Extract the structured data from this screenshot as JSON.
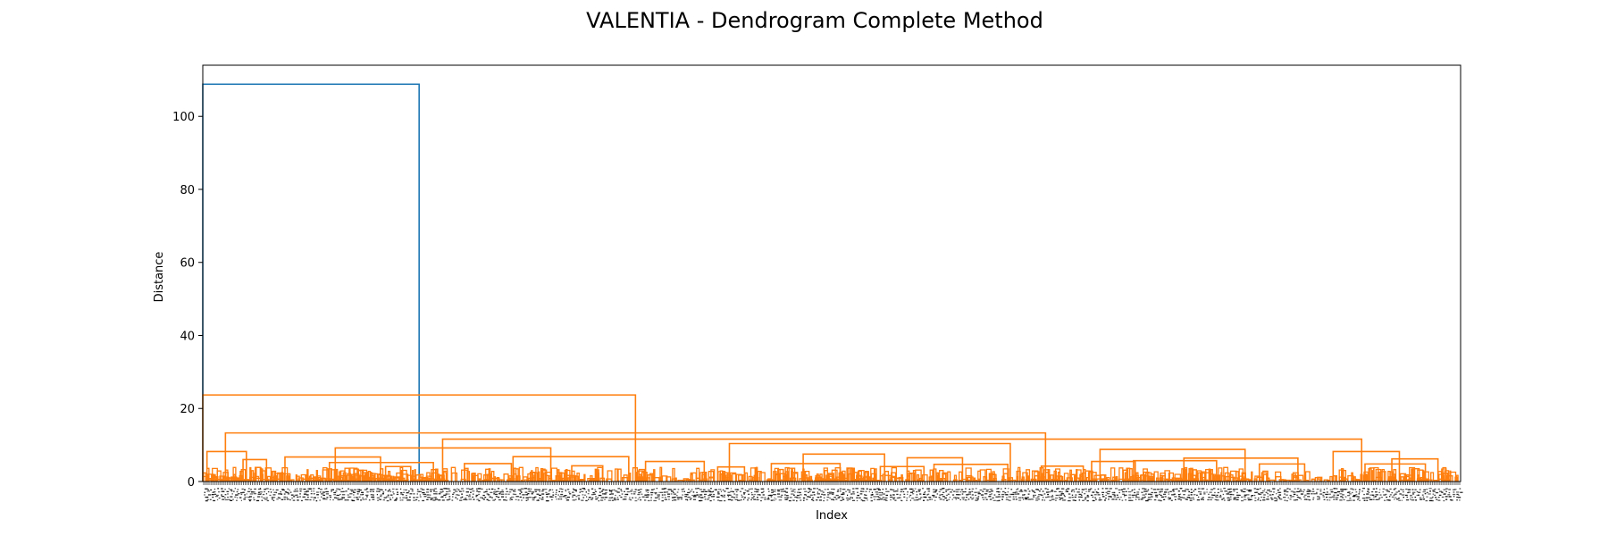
{
  "chart_data": {
    "type": "dendrogram",
    "title": "VALENTIA - Dendrogram Complete Method",
    "xlabel": "Index",
    "ylabel": "Distance",
    "ylim": [
      0,
      114
    ],
    "y_ticks": [
      0,
      20,
      40,
      60,
      80,
      100
    ],
    "leaf_count_approx": 1500,
    "leaf_range": [
      0,
      1500
    ],
    "grid": false,
    "legend": "none",
    "colors": {
      "root_link": "#1f77b4",
      "cluster_links": "#ff7f0e",
      "axes": "#000000"
    },
    "links": [
      {
        "left": 0,
        "right": 258,
        "height": 108.8,
        "color": "root"
      },
      {
        "left": 0,
        "right": 516,
        "height": 23.7,
        "color": "cluster"
      },
      {
        "left": 27,
        "right": 1005,
        "height": 13.3,
        "color": "cluster"
      },
      {
        "left": 286,
        "right": 1382,
        "height": 11.6,
        "color": "cluster"
      },
      {
        "left": 158,
        "right": 415,
        "height": 9.2,
        "color": "cluster"
      },
      {
        "left": 628,
        "right": 963,
        "height": 10.4,
        "color": "cluster"
      },
      {
        "left": 1070,
        "right": 1243,
        "height": 8.8,
        "color": "cluster"
      },
      {
        "left": 1348,
        "right": 1427,
        "height": 8.2,
        "color": "cluster"
      },
      {
        "left": 5,
        "right": 52,
        "height": 8.2,
        "color": "cluster"
      },
      {
        "left": 98,
        "right": 212,
        "height": 6.7,
        "color": "cluster"
      },
      {
        "left": 370,
        "right": 508,
        "height": 6.8,
        "color": "cluster"
      },
      {
        "left": 716,
        "right": 813,
        "height": 7.5,
        "color": "cluster"
      },
      {
        "left": 840,
        "right": 906,
        "height": 6.5,
        "color": "cluster"
      },
      {
        "left": 1170,
        "right": 1306,
        "height": 6.4,
        "color": "cluster"
      },
      {
        "left": 1418,
        "right": 1473,
        "height": 6.2,
        "color": "cluster"
      },
      {
        "left": 48,
        "right": 76,
        "height": 6.0,
        "color": "cluster"
      },
      {
        "left": 1060,
        "right": 1112,
        "height": 5.5,
        "color": "cluster"
      },
      {
        "left": 1110,
        "right": 1209,
        "height": 5.7,
        "color": "cluster"
      },
      {
        "left": 528,
        "right": 598,
        "height": 5.5,
        "color": "cluster"
      },
      {
        "left": 151,
        "right": 275,
        "height": 5.2,
        "color": "cluster"
      },
      {
        "left": 312,
        "right": 368,
        "height": 4.9,
        "color": "cluster"
      },
      {
        "left": 678,
        "right": 760,
        "height": 4.9,
        "color": "cluster"
      },
      {
        "left": 872,
        "right": 960,
        "height": 4.7,
        "color": "cluster"
      },
      {
        "left": 1260,
        "right": 1314,
        "height": 4.8,
        "color": "cluster"
      },
      {
        "left": 1386,
        "right": 1458,
        "height": 4.8,
        "color": "cluster"
      },
      {
        "left": 440,
        "right": 477,
        "height": 4.3,
        "color": "cluster"
      },
      {
        "left": 1000,
        "right": 1050,
        "height": 4.2,
        "color": "cluster"
      },
      {
        "left": 614,
        "right": 646,
        "height": 4.0,
        "color": "cluster"
      },
      {
        "left": 218,
        "right": 248,
        "height": 4.1,
        "color": "cluster"
      },
      {
        "left": 808,
        "right": 860,
        "height": 4.1,
        "color": "cluster"
      }
    ]
  }
}
